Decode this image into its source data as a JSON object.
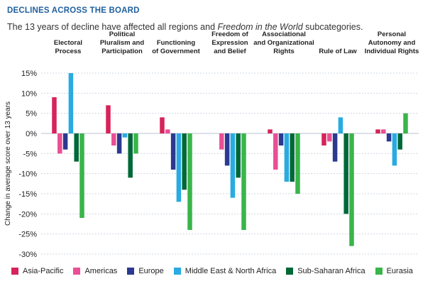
{
  "header": {
    "heading": "DECLINES ACROSS THE BOARD",
    "subtitle_before": "The 13 years of decline have affected all regions and ",
    "subtitle_italic": "Freedom in the World",
    "subtitle_after": " subcategories."
  },
  "chart_data": {
    "type": "bar",
    "ylabel": "Change in average score over 13 years",
    "xlabel": "",
    "ylim": [
      -30,
      15
    ],
    "yticks": [
      15,
      10,
      5,
      0,
      -5,
      -10,
      -15,
      -20,
      -25,
      -30
    ],
    "ytick_labels": [
      "15%",
      "10%",
      "5%",
      "0%",
      "-5%",
      "-10%",
      "-15%",
      "-20%",
      "-25%",
      "-30%"
    ],
    "grid": true,
    "legend_position": "bottom",
    "categories": [
      [
        "Electoral",
        "Process"
      ],
      [
        "Political",
        "Pluralism and",
        "Participation"
      ],
      [
        "Functioning",
        "of Government"
      ],
      [
        "Freedom of",
        "Expression",
        "and Belief"
      ],
      [
        "Associational",
        "and Organizational",
        "Rights"
      ],
      [
        "Rule of Law"
      ],
      [
        "Personal",
        "Autonomy and",
        "Individual Rights"
      ]
    ],
    "series": [
      {
        "name": "Asia-Pacific",
        "color": "#d6235a",
        "values": [
          9,
          7,
          4,
          0,
          1,
          -3,
          1
        ]
      },
      {
        "name": "Americas",
        "color": "#ea4f95",
        "values": [
          -5,
          -3,
          1,
          -4,
          -9,
          -2,
          1
        ]
      },
      {
        "name": "Europe",
        "color": "#2b3990",
        "values": [
          -4,
          -5,
          -9,
          -8,
          -3,
          -7,
          -2
        ]
      },
      {
        "name": "Middle East & North Africa",
        "color": "#29abe2",
        "values": [
          15,
          -1,
          -17,
          -16,
          -12,
          4,
          -8
        ]
      },
      {
        "name": "Sub-Saharan Africa",
        "color": "#006837",
        "values": [
          -7,
          -11,
          -14,
          -11,
          -12,
          -20,
          -4
        ]
      },
      {
        "name": "Eurasia",
        "color": "#39b54a",
        "values": [
          -21,
          -5,
          -24,
          -24,
          -15,
          -28,
          5
        ]
      }
    ]
  }
}
